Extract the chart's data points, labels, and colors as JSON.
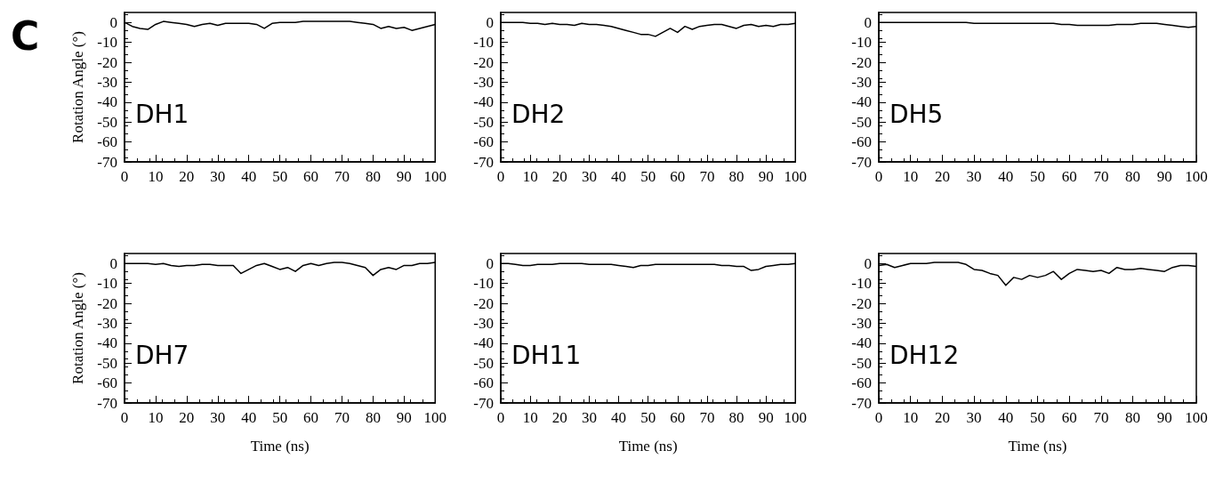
{
  "chart_data": [
    {
      "type": "line",
      "title": "DH1",
      "ylabel": "Rotation Angle (°)",
      "annotations": [
        "C"
      ],
      "color": "#000000",
      "xlim": [
        0,
        100
      ],
      "ylim": [
        -70,
        5
      ],
      "xticks": [
        0,
        10,
        20,
        30,
        40,
        50,
        60,
        70,
        80,
        90,
        100
      ],
      "yticks": [
        -70,
        -60,
        -50,
        -40,
        -30,
        -20,
        -10,
        0
      ],
      "x": [
        0,
        2.5,
        5,
        7.5,
        10,
        12.5,
        15,
        17.5,
        20,
        22.5,
        25,
        27.5,
        30,
        32.5,
        35,
        37.5,
        40,
        42.5,
        45,
        47.5,
        50,
        52.5,
        55,
        57.5,
        60,
        62.5,
        65,
        67.5,
        70,
        72.5,
        75,
        77.5,
        80,
        82.5,
        85,
        87.5,
        90,
        92.5,
        95,
        97.5,
        100
      ],
      "values": [
        0,
        -2,
        -3,
        -3.5,
        -1,
        0.5,
        0,
        -0.5,
        -1,
        -2,
        -1,
        -0.5,
        -1.5,
        -0.5,
        -0.5,
        -0.5,
        -0.5,
        -1,
        -3,
        -0.5,
        0,
        0,
        0,
        0.5,
        0.5,
        0.5,
        0.5,
        0.5,
        0.5,
        0.5,
        0,
        -0.5,
        -1,
        -3,
        -2,
        -3,
        -2.5,
        -4,
        -3,
        -2,
        -1
      ]
    },
    {
      "type": "line",
      "title": "DH2",
      "color": "#000000",
      "xlim": [
        0,
        100
      ],
      "ylim": [
        -70,
        5
      ],
      "xticks": [
        0,
        10,
        20,
        30,
        40,
        50,
        60,
        70,
        80,
        90,
        100
      ],
      "yticks": [
        -70,
        -60,
        -50,
        -40,
        -30,
        -20,
        -10,
        0
      ],
      "x": [
        0,
        2.5,
        5,
        7.5,
        10,
        12.5,
        15,
        17.5,
        20,
        22.5,
        25,
        27.5,
        30,
        32.5,
        35,
        37.5,
        40,
        42.5,
        45,
        47.5,
        50,
        52.5,
        55,
        57.5,
        60,
        62.5,
        65,
        67.5,
        70,
        72.5,
        75,
        77.5,
        80,
        82.5,
        85,
        87.5,
        90,
        92.5,
        95,
        97.5,
        100
      ],
      "values": [
        0,
        0,
        0,
        0,
        -0.5,
        -0.5,
        -1,
        -0.5,
        -1,
        -1,
        -1.5,
        -0.5,
        -1,
        -1,
        -1.5,
        -2,
        -3,
        -4,
        -5,
        -6,
        -6,
        -7,
        -5,
        -3,
        -5,
        -2,
        -3.5,
        -2,
        -1.5,
        -1,
        -1,
        -2,
        -3,
        -1.5,
        -1,
        -2,
        -1.5,
        -2,
        -1,
        -1,
        -0.5
      ]
    },
    {
      "type": "line",
      "title": "DH5",
      "color": "#000000",
      "xlim": [
        0,
        100
      ],
      "ylim": [
        -70,
        5
      ],
      "xticks": [
        0,
        10,
        20,
        30,
        40,
        50,
        60,
        70,
        80,
        90,
        100
      ],
      "yticks": [
        -70,
        -60,
        -50,
        -40,
        -30,
        -20,
        -10,
        0
      ],
      "x": [
        0,
        2.5,
        5,
        7.5,
        10,
        12.5,
        15,
        17.5,
        20,
        22.5,
        25,
        27.5,
        30,
        32.5,
        35,
        37.5,
        40,
        42.5,
        45,
        47.5,
        50,
        52.5,
        55,
        57.5,
        60,
        62.5,
        65,
        67.5,
        70,
        72.5,
        75,
        77.5,
        80,
        82.5,
        85,
        87.5,
        90,
        92.5,
        95,
        97.5,
        100
      ],
      "values": [
        0,
        0,
        0,
        0,
        0,
        0,
        0,
        0,
        0,
        0,
        0,
        0,
        -0.5,
        -0.5,
        -0.5,
        -0.5,
        -0.5,
        -0.5,
        -0.5,
        -0.5,
        -0.5,
        -0.5,
        -0.5,
        -1,
        -1,
        -1.5,
        -1.5,
        -1.5,
        -1.5,
        -1.5,
        -1,
        -1,
        -1,
        -0.5,
        -0.5,
        -0.5,
        -1,
        -1.5,
        -2,
        -2.5,
        -2
      ]
    },
    {
      "type": "line",
      "title": "DH7",
      "xlabel": "Time (ns)",
      "ylabel": "Rotation Angle (°)",
      "color": "#000000",
      "xlim": [
        0,
        100
      ],
      "ylim": [
        -70,
        5
      ],
      "xticks": [
        0,
        10,
        20,
        30,
        40,
        50,
        60,
        70,
        80,
        90,
        100
      ],
      "yticks": [
        -70,
        -60,
        -50,
        -40,
        -30,
        -20,
        -10,
        0
      ],
      "x": [
        0,
        2.5,
        5,
        7.5,
        10,
        12.5,
        15,
        17.5,
        20,
        22.5,
        25,
        27.5,
        30,
        32.5,
        35,
        37.5,
        40,
        42.5,
        45,
        47.5,
        50,
        52.5,
        55,
        57.5,
        60,
        62.5,
        65,
        67.5,
        70,
        72.5,
        75,
        77.5,
        80,
        82.5,
        85,
        87.5,
        90,
        92.5,
        95,
        97.5,
        100
      ],
      "values": [
        0,
        0,
        0,
        0,
        -0.5,
        0,
        -1,
        -1.5,
        -1,
        -1,
        -0.5,
        -0.5,
        -1,
        -1,
        -1,
        -5,
        -3,
        -1,
        0,
        -1.5,
        -3,
        -2,
        -4,
        -1,
        0,
        -1,
        0,
        0.5,
        0.5,
        0,
        -1,
        -2,
        -6,
        -3,
        -2,
        -3,
        -1,
        -1,
        0,
        0,
        0.5
      ]
    },
    {
      "type": "line",
      "title": "DH11",
      "xlabel": "Time (ns)",
      "color": "#000000",
      "xlim": [
        0,
        100
      ],
      "ylim": [
        -70,
        5
      ],
      "xticks": [
        0,
        10,
        20,
        30,
        40,
        50,
        60,
        70,
        80,
        90,
        100
      ],
      "yticks": [
        -70,
        -60,
        -50,
        -40,
        -30,
        -20,
        -10,
        0
      ],
      "x": [
        0,
        2.5,
        5,
        7.5,
        10,
        12.5,
        15,
        17.5,
        20,
        22.5,
        25,
        27.5,
        30,
        32.5,
        35,
        37.5,
        40,
        42.5,
        45,
        47.5,
        50,
        52.5,
        55,
        57.5,
        60,
        62.5,
        65,
        67.5,
        70,
        72.5,
        75,
        77.5,
        80,
        82.5,
        85,
        87.5,
        90,
        92.5,
        95,
        97.5,
        100
      ],
      "values": [
        0,
        0,
        -0.5,
        -1,
        -1,
        -0.5,
        -0.5,
        -0.5,
        0,
        0,
        0,
        0,
        -0.5,
        -0.5,
        -0.5,
        -0.5,
        -1,
        -1.5,
        -2,
        -1,
        -1,
        -0.5,
        -0.5,
        -0.5,
        -0.5,
        -0.5,
        -0.5,
        -0.5,
        -0.5,
        -0.5,
        -1,
        -1,
        -1.5,
        -1.5,
        -3.5,
        -3,
        -1.5,
        -1,
        -0.5,
        -0.5,
        0
      ]
    },
    {
      "type": "line",
      "title": "DH12",
      "xlabel": "Time (ns)",
      "color": "#000000",
      "xlim": [
        0,
        100
      ],
      "ylim": [
        -70,
        5
      ],
      "xticks": [
        0,
        10,
        20,
        30,
        40,
        50,
        60,
        70,
        80,
        90,
        100
      ],
      "yticks": [
        -70,
        -60,
        -50,
        -40,
        -30,
        -20,
        -10,
        0
      ],
      "x": [
        0,
        2.5,
        5,
        7.5,
        10,
        12.5,
        15,
        17.5,
        20,
        22.5,
        25,
        27.5,
        30,
        32.5,
        35,
        37.5,
        40,
        42.5,
        45,
        47.5,
        50,
        52.5,
        55,
        57.5,
        60,
        62.5,
        65,
        67.5,
        70,
        72.5,
        75,
        77.5,
        80,
        82.5,
        85,
        87.5,
        90,
        92.5,
        95,
        97.5,
        100
      ],
      "values": [
        -1,
        -0.5,
        -2,
        -1,
        0,
        0,
        0,
        0.5,
        0.5,
        0.5,
        0.5,
        -0.5,
        -3,
        -3.5,
        -5,
        -6,
        -11,
        -7,
        -8,
        -6,
        -7,
        -6,
        -4,
        -8,
        -5,
        -3,
        -3.5,
        -4,
        -3.5,
        -5,
        -2,
        -3,
        -3,
        -2.5,
        -3,
        -3.5,
        -4,
        -2,
        -1,
        -1,
        -1.5
      ]
    }
  ]
}
